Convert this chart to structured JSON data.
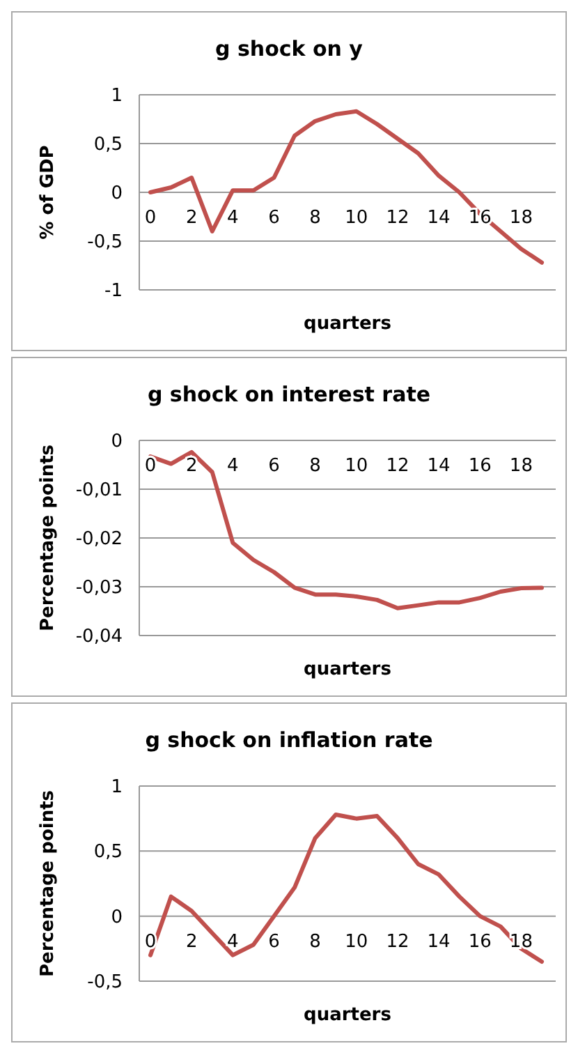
{
  "chart_data": [
    {
      "type": "line",
      "title": "g shock on y",
      "xlabel": "quarters",
      "ylabel": "% of GDP",
      "categories": [
        "0",
        null,
        "2",
        null,
        "4",
        null,
        "6",
        null,
        "8",
        null,
        "10",
        null,
        "12",
        null,
        "14",
        null,
        "16",
        null,
        "18",
        null
      ],
      "series": [
        {
          "color": "#c0504d",
          "values": [
            0,
            0.05,
            0.15,
            -0.4,
            0.02,
            0.02,
            0.15,
            0.58,
            0.73,
            0.8,
            0.83,
            0.7,
            0.55,
            0.4,
            0.17,
            0.0,
            -0.22,
            -0.4,
            -0.58,
            -0.72
          ]
        }
      ],
      "ylim": [
        -1,
        1
      ],
      "yticks": [
        -1,
        {
          "value": -0.5,
          "label": "-0,5"
        },
        0,
        {
          "value": 0.5,
          "label": "0,5"
        },
        1
      ],
      "grid": "y"
    },
    {
      "type": "line",
      "title": "g shock on interest rate",
      "xlabel": "quarters",
      "ylabel": "Percentage points",
      "categories": [
        "0",
        null,
        "2",
        null,
        "4",
        null,
        "6",
        null,
        "8",
        null,
        "10",
        null,
        "12",
        null,
        "14",
        null,
        "16",
        null,
        "18",
        null
      ],
      "series": [
        {
          "color": "#c0504d",
          "values": [
            -0.0033,
            -0.0048,
            -0.0024,
            -0.0065,
            -0.021,
            -0.0245,
            -0.027,
            -0.0302,
            -0.0316,
            -0.0316,
            -0.032,
            -0.0327,
            -0.0344,
            -0.0338,
            -0.0332,
            -0.0332,
            -0.0323,
            -0.031,
            -0.0303,
            -0.0302
          ]
        }
      ],
      "ylim": [
        -0.04,
        0
      ],
      "yticks": [
        {
          "value": -0.04,
          "label": "-0,04"
        },
        {
          "value": -0.03,
          "label": "-0,03"
        },
        {
          "value": -0.02,
          "label": "-0,02"
        },
        {
          "value": -0.01,
          "label": "-0,01"
        },
        0
      ],
      "grid": "y"
    },
    {
      "type": "line",
      "title": "g shock on inflation rate",
      "xlabel": "quarters",
      "ylabel": "Percentage  points",
      "categories": [
        "0",
        null,
        "2",
        null,
        "4",
        null,
        "6",
        null,
        "8",
        null,
        "10",
        null,
        "12",
        null,
        "14",
        null,
        "16",
        null,
        "18",
        null
      ],
      "series": [
        {
          "color": "#c0504d",
          "values": [
            -0.3,
            0.15,
            0.04,
            -0.13,
            -0.3,
            -0.22,
            0,
            0.22,
            0.6,
            0.78,
            0.75,
            0.77,
            0.6,
            0.4,
            0.32,
            0.15,
            0,
            -0.08,
            -0.25,
            -0.35
          ]
        }
      ],
      "ylim": [
        -0.5,
        1
      ],
      "yticks": [
        {
          "value": -0.5,
          "label": "-0,5"
        },
        0,
        {
          "value": 0.5,
          "label": "0,5"
        },
        1
      ],
      "grid": "y"
    }
  ]
}
